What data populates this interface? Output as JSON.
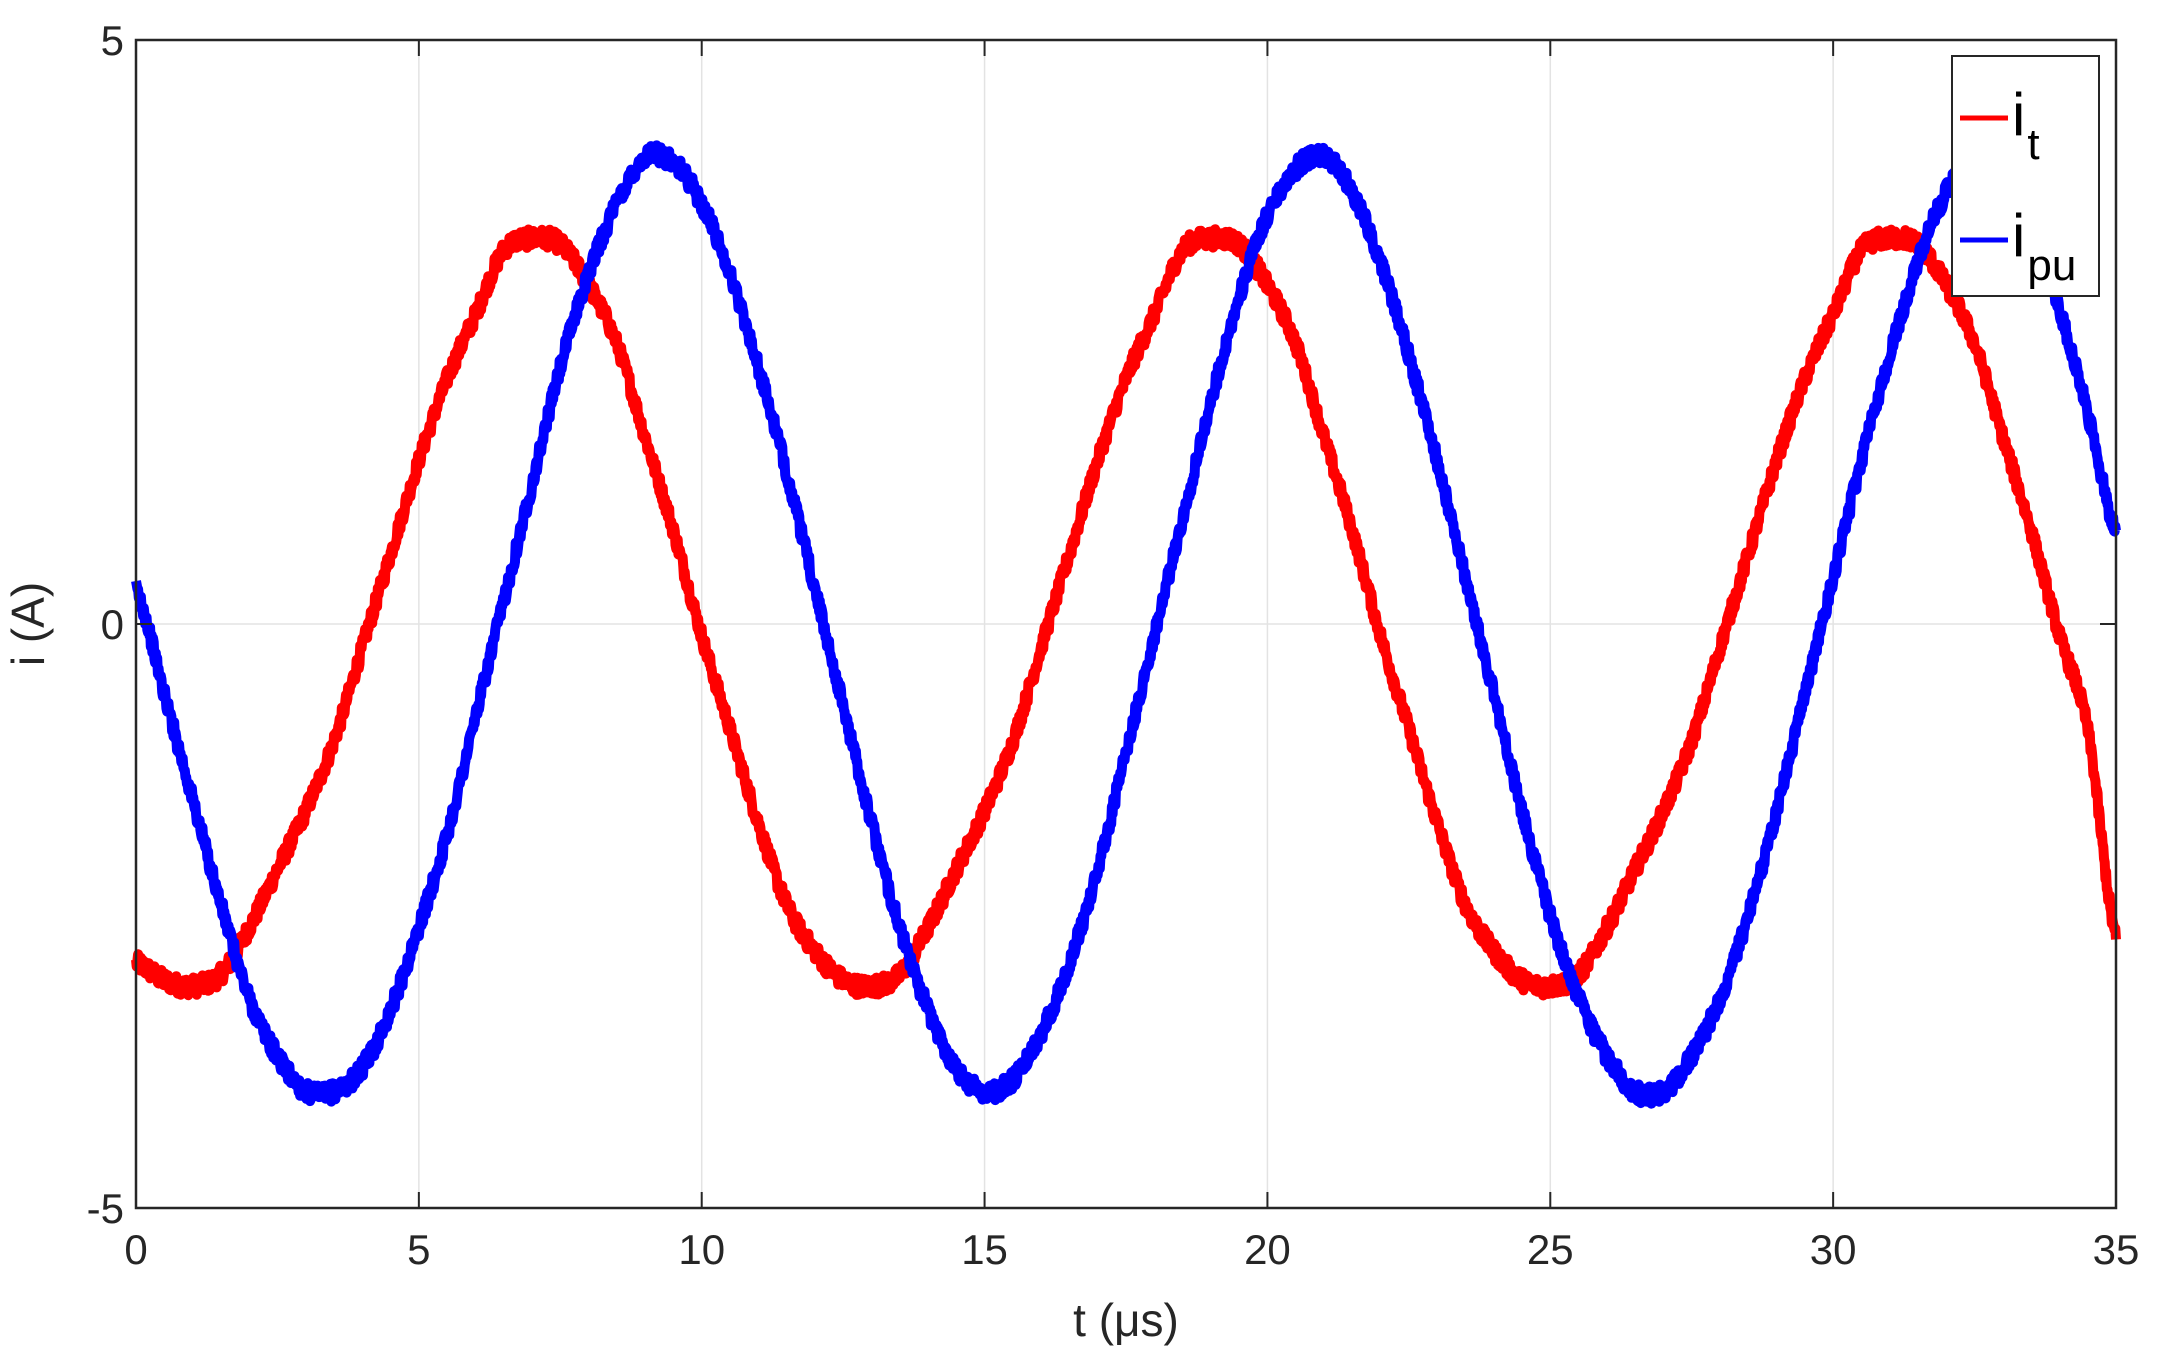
{
  "chart_data": {
    "type": "line",
    "xlabel": "t (μs)",
    "ylabel": "i (A)",
    "xlim": [
      0,
      35
    ],
    "ylim": [
      -5,
      5
    ],
    "xticks": [
      "0",
      "5",
      "10",
      "15",
      "20",
      "25",
      "30",
      "35"
    ],
    "yticks": [
      "-5",
      "0",
      "5"
    ],
    "grid": true,
    "legend_position": "top-right",
    "series": [
      {
        "name": "i_t",
        "legend_main": "i",
        "legend_sub": "t",
        "color": "#ff0000",
        "x": [
          0,
          0.5,
          1.0,
          1.5,
          2.0,
          2.5,
          3.0,
          3.5,
          4.0,
          4.5,
          5.0,
          5.5,
          6.0,
          6.5,
          7.0,
          7.5,
          8.0,
          8.5,
          9.0,
          9.5,
          10.0,
          10.5,
          11.0,
          11.5,
          12.0,
          12.5,
          13.0,
          13.5,
          14.0,
          14.5,
          15.0,
          15.5,
          16.0,
          16.5,
          17.0,
          17.5,
          18.0,
          18.5,
          19.0,
          19.5,
          20.0,
          20.5,
          21.0,
          21.5,
          22.0,
          22.5,
          23.0,
          23.5,
          24.0,
          24.5,
          25.0,
          25.5,
          26.0,
          26.5,
          27.0,
          27.5,
          28.0,
          28.5,
          29.0,
          29.5,
          30.0,
          30.5,
          31.0,
          31.5,
          32.0,
          32.5,
          33.0,
          33.5,
          34.0,
          34.5,
          35.0
        ],
        "y": [
          -2.9,
          -3.05,
          -3.1,
          -3.0,
          -2.6,
          -2.1,
          -1.6,
          -1.0,
          -0.2,
          0.6,
          1.4,
          2.1,
          2.65,
          3.2,
          3.3,
          3.25,
          2.9,
          2.4,
          1.6,
          0.8,
          -0.1,
          -0.9,
          -1.7,
          -2.4,
          -2.8,
          -3.05,
          -3.1,
          -3.0,
          -2.6,
          -2.1,
          -1.6,
          -1.0,
          -0.2,
          0.6,
          1.4,
          2.1,
          2.65,
          3.2,
          3.3,
          3.25,
          2.9,
          2.4,
          1.6,
          0.8,
          -0.1,
          -0.9,
          -1.7,
          -2.4,
          -2.8,
          -3.05,
          -3.1,
          -3.0,
          -2.6,
          -2.1,
          -1.6,
          -1.0,
          -0.2,
          0.6,
          1.4,
          2.1,
          2.65,
          3.2,
          3.3,
          3.25,
          2.9,
          2.4,
          1.6,
          0.8,
          -0.1,
          -0.9,
          -2.7
        ]
      },
      {
        "name": "i_pu",
        "legend_main": "i",
        "legend_sub": "pu",
        "color": "#0000ff",
        "x": [
          0,
          0.5,
          1.0,
          1.5,
          2.0,
          2.5,
          3.0,
          3.5,
          4.0,
          4.5,
          5.0,
          5.5,
          6.0,
          6.5,
          7.0,
          7.5,
          8.0,
          8.5,
          9.0,
          9.5,
          10.0,
          10.5,
          11.0,
          11.5,
          12.0,
          12.5,
          13.0,
          13.5,
          14.0,
          14.5,
          15.0,
          15.5,
          16.0,
          16.5,
          17.0,
          17.5,
          18.0,
          18.5,
          19.0,
          19.5,
          20.0,
          20.5,
          21.0,
          21.5,
          22.0,
          22.5,
          23.0,
          23.5,
          24.0,
          24.5,
          25.0,
          25.5,
          26.0,
          26.5,
          27.0,
          27.5,
          28.0,
          28.5,
          29.0,
          29.5,
          30.0,
          30.5,
          31.0,
          31.5,
          32.0,
          32.5,
          33.0,
          33.5,
          34.0,
          34.5,
          35.0
        ],
        "y": [
          0.3,
          -0.6,
          -1.5,
          -2.4,
          -3.2,
          -3.7,
          -4.0,
          -4.0,
          -3.8,
          -3.3,
          -2.6,
          -1.8,
          -0.8,
          0.2,
          1.2,
          2.2,
          3.0,
          3.6,
          4.0,
          3.95,
          3.6,
          3.0,
          2.2,
          1.3,
          0.3,
          -0.7,
          -1.7,
          -2.6,
          -3.3,
          -3.8,
          -4.0,
          -3.9,
          -3.5,
          -2.9,
          -2.1,
          -1.1,
          -0.1,
          0.9,
          1.9,
          2.8,
          3.5,
          3.9,
          4.0,
          3.7,
          3.1,
          2.3,
          1.4,
          0.4,
          -0.6,
          -1.6,
          -2.5,
          -3.2,
          -3.7,
          -4.0,
          -4.0,
          -3.7,
          -3.2,
          -2.5,
          -1.6,
          -0.6,
          0.4,
          1.4,
          2.3,
          3.1,
          3.7,
          4.0,
          3.9,
          3.4,
          2.7,
          1.8,
          0.8
        ]
      }
    ]
  }
}
